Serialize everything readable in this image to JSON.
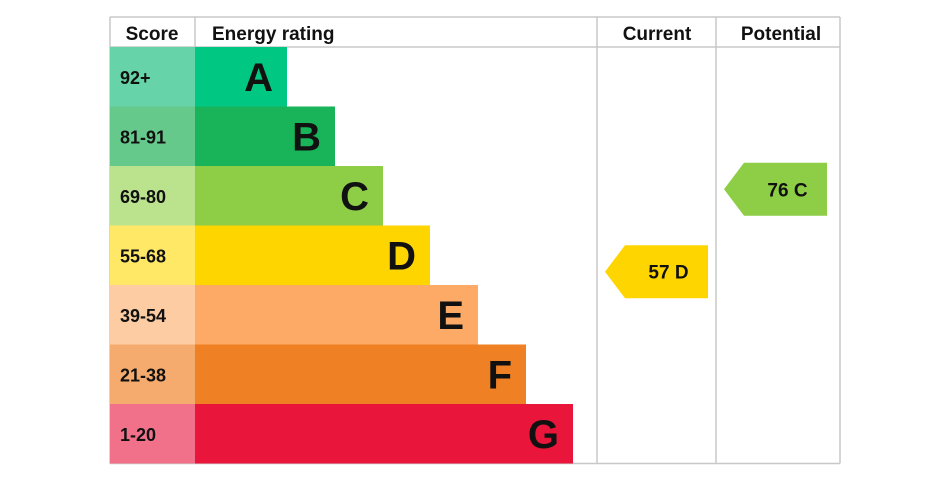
{
  "chart_data": {
    "type": "table",
    "headers": {
      "score": "Score",
      "rating": "Energy rating",
      "current": "Current",
      "potential": "Potential"
    },
    "bands": [
      {
        "letter": "A",
        "range": "92+",
        "color": "#00c781",
        "light": "#66d3a8"
      },
      {
        "letter": "B",
        "range": "81-91",
        "color": "#19b459",
        "light": "#66c98c"
      },
      {
        "letter": "C",
        "range": "69-80",
        "color": "#8dce46",
        "light": "#bbe38e"
      },
      {
        "letter": "D",
        "range": "55-68",
        "color": "#ffd500",
        "light": "#ffe866"
      },
      {
        "letter": "E",
        "range": "39-54",
        "color": "#fcaa65",
        "light": "#fdcca2"
      },
      {
        "letter": "F",
        "range": "21-38",
        "color": "#ef8023",
        "light": "#f5ab6d"
      },
      {
        "letter": "G",
        "range": "1-20",
        "color": "#e9153b",
        "light": "#f07189"
      }
    ],
    "current": {
      "score": 57,
      "band": "D",
      "label": "57 D"
    },
    "potential": {
      "score": 76,
      "band": "C",
      "label": "76 C"
    }
  }
}
